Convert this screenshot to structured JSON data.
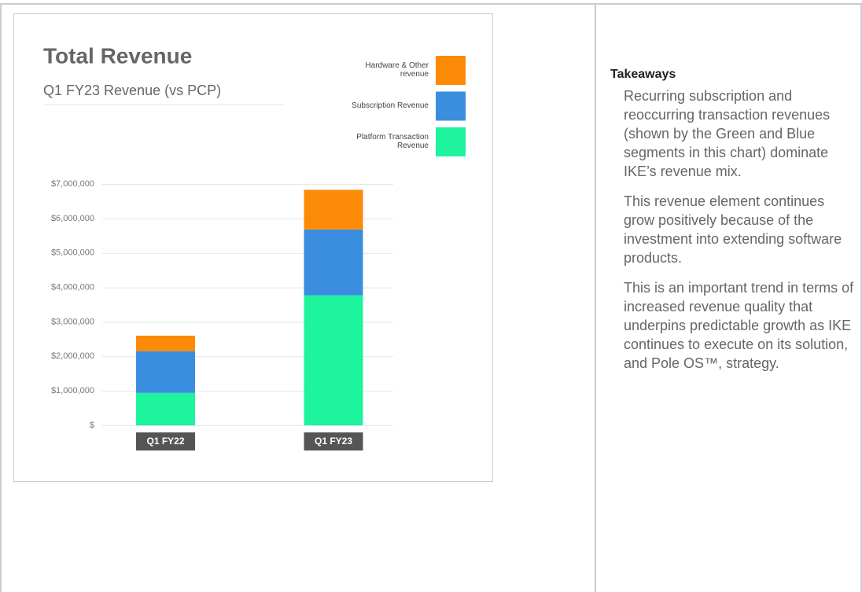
{
  "chart_data": {
    "type": "stacked_bar",
    "title": "Total Revenue",
    "subtitle": "Q1 FY23 Revenue (vs PCP)",
    "categories": [
      "Q1 FY22",
      "Q1 FY23"
    ],
    "series": [
      {
        "name": "Platform Transaction Revenue",
        "color": "#1ef39e",
        "values": [
          940000,
          3770000
        ]
      },
      {
        "name": "Subscription Revenue",
        "color": "#3b8de0",
        "values": [
          1210000,
          1910000
        ]
      },
      {
        "name": "Hardware & Other revenue",
        "color": "#fb8a06",
        "values": [
          450000,
          1150000
        ]
      }
    ],
    "ylim": [
      0,
      7000000
    ],
    "yticks": [
      {
        "value": 0,
        "label": "$"
      },
      {
        "value": 1000000,
        "label": "$1,000,000"
      },
      {
        "value": 2000000,
        "label": "$2,000,000"
      },
      {
        "value": 3000000,
        "label": "$3,000,000"
      },
      {
        "value": 4000000,
        "label": "$4,000,000"
      },
      {
        "value": 5000000,
        "label": "$5,000,000"
      },
      {
        "value": 6000000,
        "label": "$6,000,000"
      },
      {
        "value": 7000000,
        "label": "$7,000,000"
      }
    ],
    "grid": true
  },
  "takeaways": {
    "heading": "Takeaways",
    "paragraphs": [
      "Recurring subscription and reoccurring transaction revenues (shown by the Green and Blue segments in this chart) dominate IKE’s revenue mix.",
      "This revenue element continues grow positively because of the investment into extending software products.",
      "This is an important trend in terms of increased revenue quality that underpins predictable growth as IKE continues to execute on its solution, and Pole OS™, strategy."
    ]
  }
}
